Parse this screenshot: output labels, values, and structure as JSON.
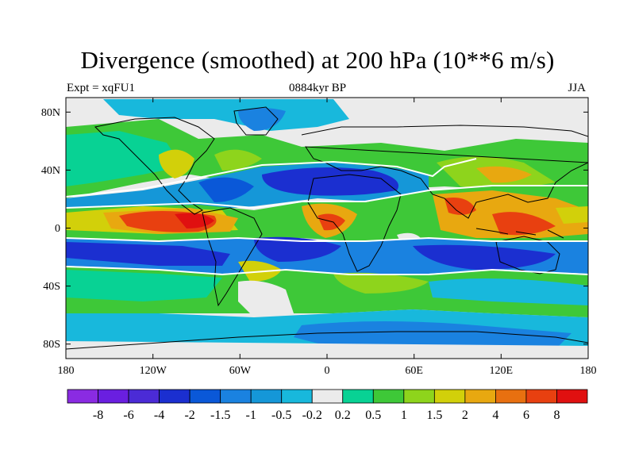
{
  "title": "Divergence (smoothed) at 200 hPa (10**6 m/s)",
  "subtitle_left": "Expt = xqFU1",
  "subtitle_center": "0884kyr BP",
  "subtitle_right": "JJA",
  "axes": {
    "x_ticks": [
      "180",
      "120W",
      "60W",
      "0",
      "60E",
      "120E",
      "180"
    ],
    "y_ticks": [
      "80N",
      "40N",
      "0",
      "40S",
      "80S"
    ]
  },
  "colorbar": {
    "labels": [
      "-8",
      "-6",
      "-4",
      "-2",
      "-1.5",
      "-1",
      "-0.5",
      "-0.2",
      "0.2",
      "0.5",
      "1",
      "1.5",
      "2",
      "4",
      "6",
      "8"
    ],
    "colors": [
      "#8a2be2",
      "#6a1fe0",
      "#4b2bd6",
      "#1b2fd0",
      "#0a58d8",
      "#1a82e0",
      "#1597d8",
      "#18b8dc",
      "#ebebeb",
      "#08d294",
      "#3ec838",
      "#8ed41c",
      "#d2d00a",
      "#e8a810",
      "#e87010",
      "#e84010",
      "#e01010"
    ]
  },
  "chart_data": {
    "type": "heatmap",
    "title": "Divergence (smoothed) at 200 hPa (10**6 m/s)",
    "variable": "Divergence (smoothed) at 200 hPa",
    "units": "10**6 m/s",
    "experiment": "xqFU1",
    "time": "0884kyr BP",
    "season": "JJA",
    "lon_range": [
      -180,
      180
    ],
    "lat_range": [
      -90,
      90
    ],
    "contour_levels": [
      -8,
      -6,
      -4,
      -2,
      -1.5,
      -1,
      -0.5,
      -0.2,
      0.2,
      0.5,
      1,
      1.5,
      2,
      4,
      6,
      8
    ]
  }
}
